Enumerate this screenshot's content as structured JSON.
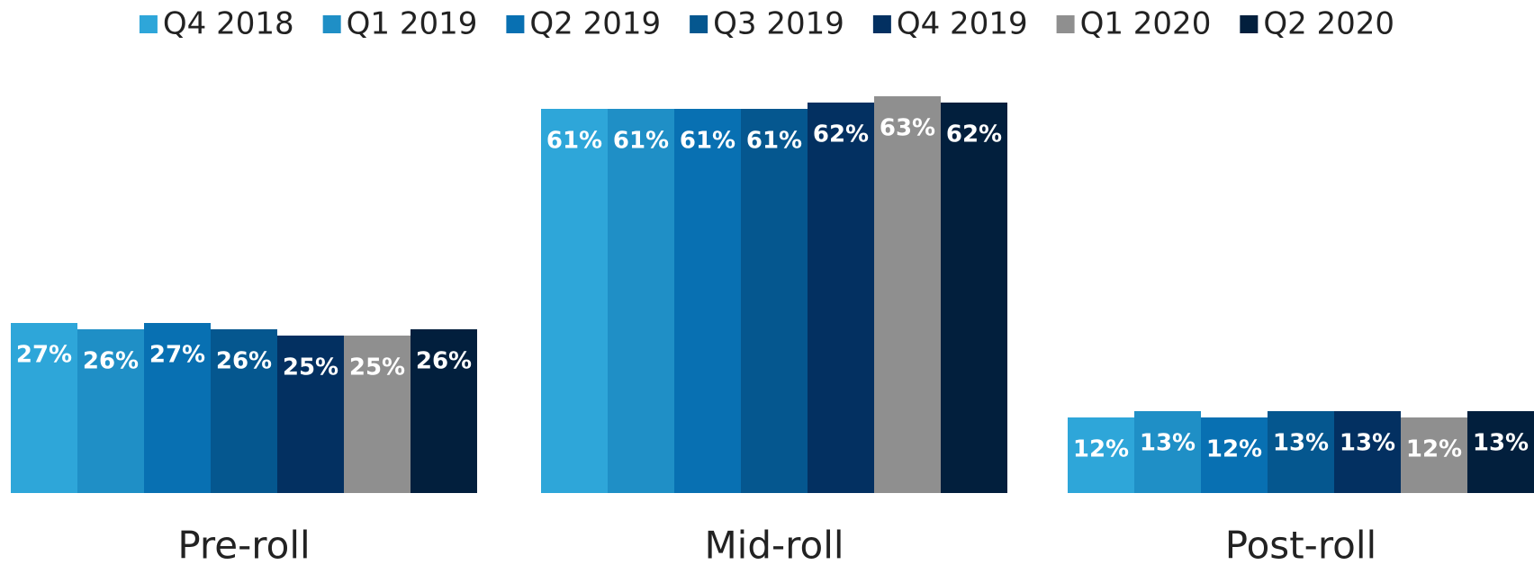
{
  "chart_data": {
    "type": "bar",
    "categories": [
      "Pre-roll",
      "Mid-roll",
      "Post-roll"
    ],
    "series": [
      {
        "name": "Q4 2018",
        "color": "#2ea6d9",
        "values": [
          27,
          61,
          12
        ],
        "value_labels": [
          "27%",
          "61%",
          "12%"
        ]
      },
      {
        "name": "Q1 2019",
        "color": "#1f8fc6",
        "values": [
          26,
          61,
          13
        ],
        "value_labels": [
          "26%",
          "61%",
          "13%"
        ]
      },
      {
        "name": "Q2 2019",
        "color": "#0870b2",
        "values": [
          27,
          61,
          12
        ],
        "value_labels": [
          "27%",
          "61%",
          "12%"
        ]
      },
      {
        "name": "Q3 2019",
        "color": "#05578f",
        "values": [
          26,
          61,
          13
        ],
        "value_labels": [
          "26%",
          "61%",
          "13%"
        ]
      },
      {
        "name": "Q4 2019",
        "color": "#033061",
        "values": [
          25,
          62,
          13
        ],
        "value_labels": [
          "25%",
          "62%",
          "13%"
        ]
      },
      {
        "name": "Q1 2020",
        "color": "#8f8f8f",
        "values": [
          25,
          63,
          12
        ],
        "value_labels": [
          "25%",
          "63%",
          "12%"
        ]
      },
      {
        "name": "Q2 2020",
        "color": "#021f3d",
        "values": [
          26,
          62,
          13
        ],
        "value_labels": [
          "26%",
          "62%",
          "13%"
        ]
      }
    ]
  }
}
